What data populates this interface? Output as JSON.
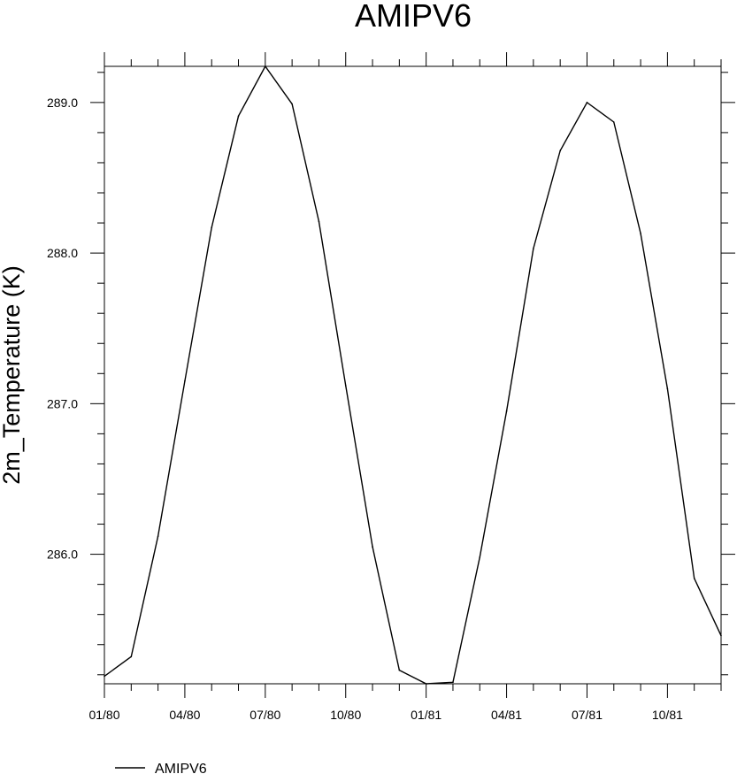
{
  "chart_data": {
    "type": "line",
    "title": "AMIPV6",
    "xlabel": "",
    "ylabel": "2m_Temperature (K)",
    "x_months": [
      0,
      1,
      2,
      3,
      4,
      5,
      6,
      7,
      8,
      9,
      10,
      11,
      12,
      13,
      14,
      15,
      16,
      17,
      18,
      19,
      20,
      21,
      22,
      23
    ],
    "x_tick_positions": [
      0,
      3,
      6,
      9,
      12,
      15,
      18,
      21
    ],
    "x_tick_labels": [
      "01/80",
      "04/80",
      "07/80",
      "10/80",
      "01/81",
      "04/81",
      "07/81",
      "10/81"
    ],
    "xlim": [
      0,
      23
    ],
    "ylim": [
      285.14,
      289.24
    ],
    "y_ticks": [
      286.0,
      287.0,
      288.0,
      289.0
    ],
    "y_tick_labels": [
      "286.0",
      "287.0",
      "288.0",
      "289.0"
    ],
    "y_minor_step": 0.2,
    "grid": false,
    "series": [
      {
        "name": "AMIPV6",
        "color": "#000000",
        "values": [
          285.19,
          285.32,
          286.12,
          287.15,
          288.17,
          288.91,
          289.24,
          288.99,
          288.21,
          287.12,
          286.05,
          285.23,
          285.14,
          285.15,
          285.98,
          286.95,
          288.03,
          288.68,
          289.0,
          288.87,
          288.13,
          287.1,
          285.84,
          285.46
        ]
      }
    ],
    "legend": {
      "position": "bottom-left",
      "label": "AMIPV6"
    }
  }
}
